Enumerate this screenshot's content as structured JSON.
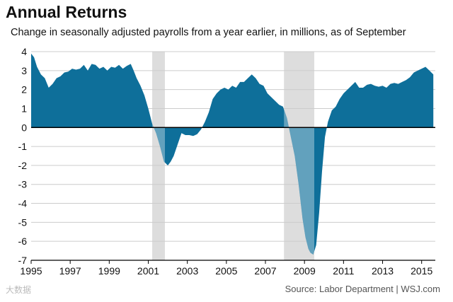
{
  "title": "Annual Returns",
  "subtitle": "Change in seasonally adjusted payrolls from a year earlier, in millions, as of September",
  "source": "Source: Labor Department  |  WSJ.com",
  "watermark": "大数据",
  "colors": {
    "area": "#0e6f9a",
    "area_recession": "#5d8fad",
    "recession": "#dddddd",
    "grid": "#cccccc",
    "axis": "#000000"
  },
  "chart_data": {
    "type": "area",
    "title": "Annual Returns",
    "subtitle": "Change in seasonally adjusted payrolls from a year earlier, in millions, as of September",
    "xlabel": "",
    "ylabel": "",
    "xlim": [
      1995,
      2015.7
    ],
    "ylim": [
      -7,
      4
    ],
    "grid": "horizontal",
    "yticks": [
      4,
      3,
      2,
      1,
      0,
      -1,
      -2,
      -3,
      -4,
      -5,
      -6,
      -7
    ],
    "xticks": [
      1995,
      1997,
      1999,
      2001,
      2003,
      2005,
      2007,
      2009,
      2011,
      2013,
      2015
    ],
    "recessions": [
      [
        2001.2,
        2001.85
      ],
      [
        2007.95,
        2009.5
      ]
    ],
    "x": [
      1995,
      1995.15,
      1995.3,
      1995.5,
      1995.7,
      1995.9,
      1996.1,
      1996.3,
      1996.5,
      1996.7,
      1996.9,
      1997.1,
      1997.3,
      1997.5,
      1997.7,
      1997.9,
      1998.1,
      1998.3,
      1998.5,
      1998.7,
      1998.9,
      1999.1,
      1999.3,
      1999.5,
      1999.7,
      1999.9,
      2000.1,
      2000.25,
      2000.4,
      2000.6,
      2000.8,
      2001,
      2001.2,
      2001.4,
      2001.6,
      2001.8,
      2002,
      2002.15,
      2002.3,
      2002.5,
      2002.7,
      2002.9,
      2003.1,
      2003.3,
      2003.5,
      2003.7,
      2003.9,
      2004.1,
      2004.3,
      2004.5,
      2004.7,
      2004.9,
      2005.1,
      2005.3,
      2005.5,
      2005.7,
      2005.9,
      2006.1,
      2006.3,
      2006.5,
      2006.7,
      2006.9,
      2007.1,
      2007.3,
      2007.5,
      2007.7,
      2007.9,
      2008.1,
      2008.3,
      2008.5,
      2008.7,
      2008.9,
      2009.05,
      2009.2,
      2009.3,
      2009.45,
      2009.6,
      2009.75,
      2009.9,
      2010.05,
      2010.2,
      2010.4,
      2010.6,
      2010.8,
      2011,
      2011.2,
      2011.4,
      2011.6,
      2011.8,
      2012,
      2012.2,
      2012.4,
      2012.6,
      2012.8,
      2013,
      2013.2,
      2013.4,
      2013.6,
      2013.8,
      2014,
      2014.2,
      2014.4,
      2014.6,
      2014.8,
      2015,
      2015.2,
      2015.4,
      2015.6
    ],
    "y": [
      3.9,
      3.7,
      3.2,
      2.8,
      2.6,
      2.1,
      2.3,
      2.6,
      2.7,
      2.9,
      2.95,
      3.1,
      3.05,
      3.1,
      3.3,
      3.0,
      3.35,
      3.3,
      3.1,
      3.2,
      3.0,
      3.2,
      3.15,
      3.3,
      3.1,
      3.25,
      3.35,
      3.0,
      2.6,
      2.2,
      1.7,
      1.0,
      0.2,
      -0.3,
      -1.0,
      -1.8,
      -2.0,
      -1.8,
      -1.5,
      -0.9,
      -0.3,
      -0.4,
      -0.4,
      -0.45,
      -0.35,
      -0.1,
      0.3,
      0.8,
      1.5,
      1.8,
      2.0,
      2.1,
      2.0,
      2.2,
      2.1,
      2.4,
      2.4,
      2.6,
      2.8,
      2.6,
      2.3,
      2.2,
      1.8,
      1.6,
      1.4,
      1.2,
      1.1,
      0.5,
      -0.5,
      -1.5,
      -3.0,
      -4.8,
      -5.8,
      -6.4,
      -6.6,
      -6.7,
      -6.2,
      -4.5,
      -2.3,
      -0.5,
      0.3,
      0.9,
      1.1,
      1.5,
      1.8,
      2.0,
      2.2,
      2.4,
      2.1,
      2.1,
      2.25,
      2.3,
      2.2,
      2.15,
      2.2,
      2.1,
      2.3,
      2.35,
      2.3,
      2.4,
      2.5,
      2.65,
      2.9,
      3.0,
      3.1,
      3.2,
      3.0,
      2.8
    ]
  }
}
